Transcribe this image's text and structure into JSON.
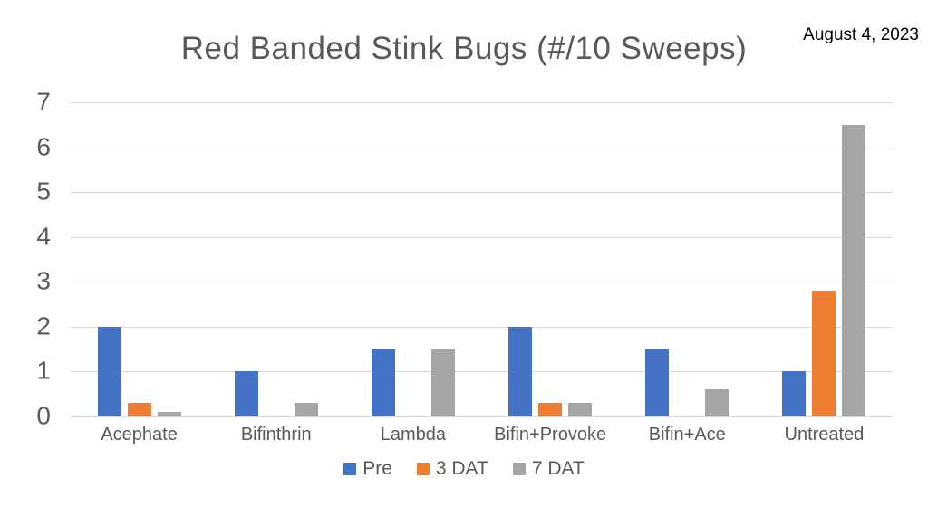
{
  "chart_data": {
    "type": "bar",
    "title": "Red Banded Stink Bugs (#/10 Sweeps)",
    "annotation_date": "August 4, 2023",
    "categories": [
      "Acephate",
      "Bifinthrin",
      "Lambda",
      "Bifin+Provoke",
      "Bifin+Ace",
      "Untreated"
    ],
    "series": [
      {
        "name": "Pre",
        "color": "#4472C4",
        "values": [
          2.0,
          1.0,
          1.5,
          2.0,
          1.5,
          1.0
        ]
      },
      {
        "name": "3 DAT",
        "color": "#ED7D31",
        "values": [
          0.3,
          0.0,
          0.0,
          0.3,
          0.0,
          2.8
        ]
      },
      {
        "name": "7 DAT",
        "color": "#A5A5A5",
        "values": [
          0.1,
          0.3,
          1.5,
          0.3,
          0.6,
          6.5
        ]
      }
    ],
    "xlabel": "",
    "ylabel": "",
    "ylim": [
      0,
      7
    ],
    "ytick_step": 1,
    "yticks": [
      0,
      1,
      2,
      3,
      4,
      5,
      6,
      7
    ],
    "grid": true,
    "legend_position": "bottom"
  }
}
